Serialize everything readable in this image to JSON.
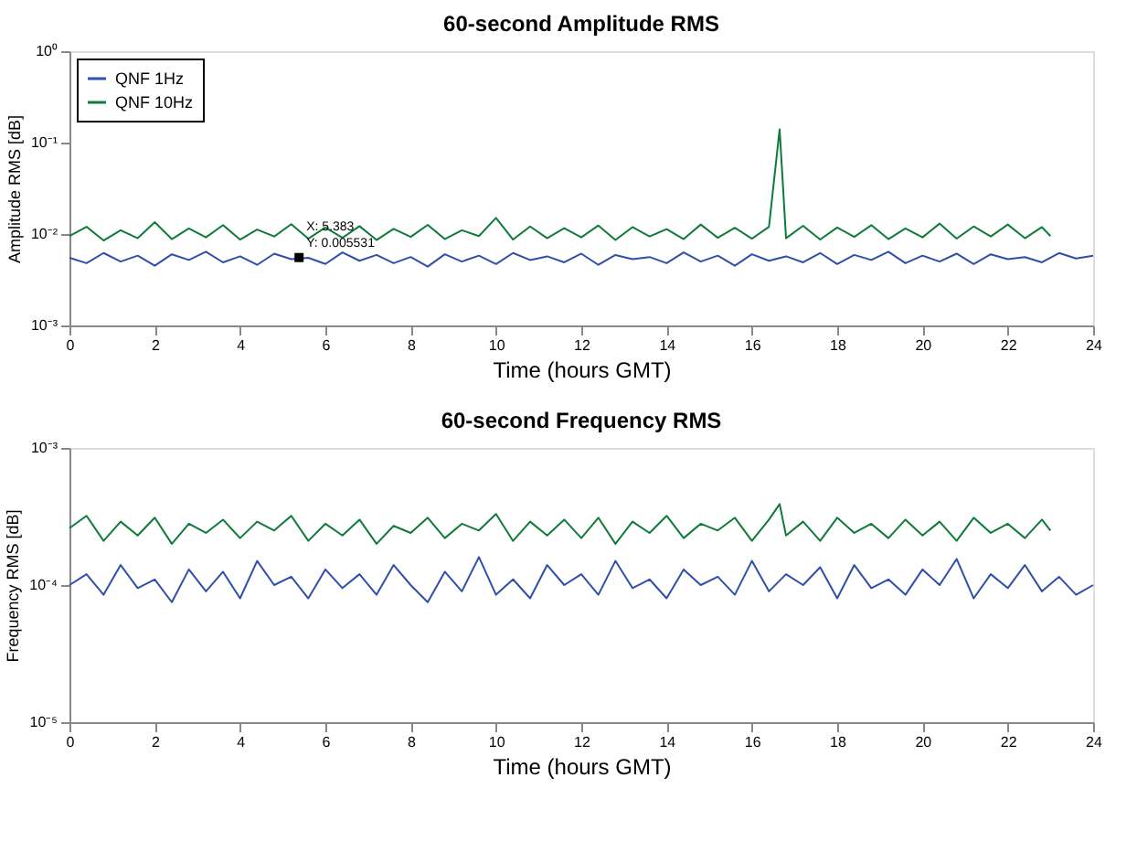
{
  "chart_data": [
    {
      "type": "line",
      "title": "60-second Amplitude RMS",
      "xlabel": "Time (hours GMT)",
      "ylabel": "Amplitude RMS [dB]",
      "log": true,
      "legend": "top left",
      "grid": false,
      "marker": "none",
      "line_style": "solid",
      "xlim": [
        0,
        24
      ],
      "xticks": [
        0,
        2,
        4,
        6,
        8,
        10,
        12,
        14,
        16,
        18,
        20,
        22,
        24
      ],
      "ylim": [
        0.001,
        1
      ],
      "yticks": [
        {
          "value": 0.001,
          "label": "10⁻³"
        },
        {
          "value": 0.01,
          "label": "10⁻²"
        },
        {
          "value": 0.1,
          "label": "10⁻¹"
        },
        {
          "value": 1,
          "label": "10⁰"
        }
      ],
      "annotations": [
        {
          "text": "X: 5.383\nY: 0.005531",
          "x": 5.383,
          "y": 0.005531
        }
      ],
      "series": [
        {
          "name": "QNF 1Hz",
          "color": "#2f4fa8",
          "x": [
            0,
            0.4,
            0.8,
            1.2,
            1.6,
            2,
            2.4,
            2.8,
            3.2,
            3.6,
            4,
            4.4,
            4.8,
            5.2,
            5.6,
            6,
            6.4,
            6.8,
            7.2,
            7.6,
            8,
            8.4,
            8.8,
            9.2,
            9.6,
            10,
            10.4,
            10.8,
            11.2,
            11.6,
            12,
            12.4,
            12.8,
            13.2,
            13.6,
            14,
            14.4,
            14.8,
            15.2,
            15.6,
            16,
            16.4,
            16.8,
            17.2,
            17.6,
            18,
            18.4,
            18.8,
            19.2,
            19.6,
            20,
            20.4,
            20.8,
            21.2,
            21.6,
            22,
            22.4,
            22.8,
            23.2,
            23.6,
            24
          ],
          "values": [
            0.0055,
            0.0048,
            0.0062,
            0.005,
            0.0058,
            0.0045,
            0.006,
            0.0052,
            0.0064,
            0.0049,
            0.0057,
            0.0046,
            0.0061,
            0.0053,
            0.0055,
            0.0047,
            0.0063,
            0.0051,
            0.0059,
            0.0048,
            0.0056,
            0.0044,
            0.006,
            0.005,
            0.0058,
            0.0047,
            0.0062,
            0.0052,
            0.0057,
            0.0049,
            0.0061,
            0.0046,
            0.0059,
            0.0053,
            0.0056,
            0.0048,
            0.0063,
            0.005,
            0.0058,
            0.0045,
            0.006,
            0.0051,
            0.0057,
            0.0049,
            0.0062,
            0.0047,
            0.0059,
            0.0052,
            0.0064,
            0.0048,
            0.0058,
            0.005,
            0.0061,
            0.0047,
            0.006,
            0.0053,
            0.0056,
            0.0049,
            0.0062,
            0.0054,
            0.0058
          ]
        },
        {
          "name": "QNF 10Hz",
          "color": "#0f7a3a",
          "x": [
            0,
            0.4,
            0.8,
            1.2,
            1.6,
            2,
            2.4,
            2.8,
            3.2,
            3.6,
            4,
            4.4,
            4.8,
            5.2,
            5.6,
            6,
            6.4,
            6.8,
            7.2,
            7.6,
            8,
            8.4,
            8.8,
            9.2,
            9.6,
            10,
            10.4,
            10.8,
            11.2,
            11.6,
            12,
            12.4,
            12.8,
            13.2,
            13.6,
            14,
            14.4,
            14.8,
            15.2,
            15.6,
            16,
            16.4,
            16.65,
            16.8,
            17.2,
            17.6,
            18,
            18.4,
            18.8,
            19.2,
            19.6,
            20,
            20.4,
            20.8,
            21.2,
            21.6,
            22,
            22.4,
            22.8,
            23
          ],
          "values": [
            0.0095,
            0.012,
            0.0085,
            0.011,
            0.009,
            0.0135,
            0.0088,
            0.0115,
            0.0092,
            0.0125,
            0.0087,
            0.0112,
            0.0094,
            0.0128,
            0.0089,
            0.0118,
            0.0091,
            0.0122,
            0.0086,
            0.0114,
            0.0093,
            0.0126,
            0.0088,
            0.011,
            0.0095,
            0.015,
            0.0087,
            0.0121,
            0.009,
            0.0116,
            0.0092,
            0.0124,
            0.0086,
            0.0119,
            0.0094,
            0.0113,
            0.0088,
            0.0127,
            0.0091,
            0.0117,
            0.0089,
            0.012,
            0.14,
            0.009,
            0.0123,
            0.0087,
            0.0118,
            0.0093,
            0.0125,
            0.0088,
            0.0115,
            0.0092,
            0.013,
            0.0089,
            0.0121,
            0.0094,
            0.0127,
            0.009,
            0.0119,
            0.0095
          ]
        }
      ]
    },
    {
      "type": "line",
      "title": "60-second Frequency RMS",
      "xlabel": "Time (hours GMT)",
      "ylabel": "Frequency RMS [dB]",
      "log": true,
      "legend": "top left",
      "grid": false,
      "marker": "none",
      "line_style": "solid",
      "xlim": [
        0,
        24
      ],
      "xticks": [
        0,
        2,
        4,
        6,
        8,
        10,
        12,
        14,
        16,
        18,
        20,
        22,
        24
      ],
      "ylim": [
        1e-05,
        0.001
      ],
      "yticks": [
        {
          "value": 1e-05,
          "label": "10⁻⁵"
        },
        {
          "value": 0.0001,
          "label": "10⁻⁴"
        },
        {
          "value": 0.001,
          "label": "10⁻³"
        }
      ],
      "series": [
        {
          "name": "QNF 1Hz",
          "color": "#2f4fa8",
          "x": [
            0,
            0.4,
            0.8,
            1.2,
            1.6,
            2,
            2.4,
            2.8,
            3.2,
            3.6,
            4,
            4.4,
            4.8,
            5.2,
            5.6,
            6,
            6.4,
            6.8,
            7.2,
            7.6,
            8,
            8.4,
            8.8,
            9.2,
            9.6,
            10,
            10.4,
            10.8,
            11.2,
            11.6,
            12,
            12.4,
            12.8,
            13.2,
            13.6,
            14,
            14.4,
            14.8,
            15.2,
            15.6,
            16,
            16.4,
            16.8,
            17.2,
            17.6,
            18,
            18.4,
            18.8,
            19.2,
            19.6,
            20,
            20.4,
            20.8,
            21.2,
            21.6,
            22,
            22.4,
            22.8,
            23.2,
            23.6,
            24
          ],
          "values": [
            0.0001,
            0.00012,
            8.5e-05,
            0.00014,
            9.5e-05,
            0.00011,
            7.5e-05,
            0.00013,
            9e-05,
            0.000125,
            8e-05,
            0.00015,
            0.0001,
            0.000115,
            8e-05,
            0.00013,
            9.5e-05,
            0.00012,
            8.5e-05,
            0.00014,
            0.0001,
            7.5e-05,
            0.000125,
            9e-05,
            0.00016,
            8.5e-05,
            0.00011,
            8e-05,
            0.00014,
            0.0001,
            0.00012,
            8.5e-05,
            0.00015,
            9.5e-05,
            0.00011,
            8e-05,
            0.00013,
            0.0001,
            0.000115,
            8.5e-05,
            0.00015,
            9e-05,
            0.00012,
            0.0001,
            0.000135,
            8e-05,
            0.00014,
            9.5e-05,
            0.00011,
            8.5e-05,
            0.00013,
            0.0001,
            0.000155,
            8e-05,
            0.00012,
            9.5e-05,
            0.00014,
            9e-05,
            0.000115,
            8.5e-05,
            0.0001
          ]
        },
        {
          "name": "QNF 10Hz",
          "color": "#0f7a3a",
          "x": [
            0,
            0.4,
            0.8,
            1.2,
            1.6,
            2,
            2.4,
            2.8,
            3.2,
            3.6,
            4,
            4.4,
            4.8,
            5.2,
            5.6,
            6,
            6.4,
            6.8,
            7.2,
            7.6,
            8,
            8.4,
            8.8,
            9.2,
            9.6,
            10,
            10.4,
            10.8,
            11.2,
            11.6,
            12,
            12.4,
            12.8,
            13.2,
            13.6,
            14,
            14.4,
            14.8,
            15.2,
            15.6,
            16,
            16.4,
            16.65,
            16.8,
            17.2,
            17.6,
            18,
            18.4,
            18.8,
            19.2,
            19.6,
            20,
            20.4,
            20.8,
            21.2,
            21.6,
            22,
            22.4,
            22.8,
            23
          ],
          "values": [
            0.00026,
            0.00032,
            0.00021,
            0.00029,
            0.00023,
            0.00031,
            0.0002,
            0.00028,
            0.00024,
            0.0003,
            0.00022,
            0.00029,
            0.00025,
            0.00032,
            0.00021,
            0.00028,
            0.00023,
            0.0003,
            0.0002,
            0.00027,
            0.00024,
            0.00031,
            0.00022,
            0.00028,
            0.00025,
            0.00033,
            0.00021,
            0.00029,
            0.00023,
            0.0003,
            0.00022,
            0.00031,
            0.0002,
            0.00029,
            0.00024,
            0.00032,
            0.00022,
            0.00028,
            0.00025,
            0.00031,
            0.00021,
            0.0003,
            0.00039,
            0.00023,
            0.00029,
            0.00021,
            0.00031,
            0.00024,
            0.00028,
            0.00022,
            0.0003,
            0.00023,
            0.00029,
            0.00021,
            0.00031,
            0.00024,
            0.00028,
            0.00022,
            0.0003,
            0.00025
          ]
        }
      ]
    }
  ]
}
